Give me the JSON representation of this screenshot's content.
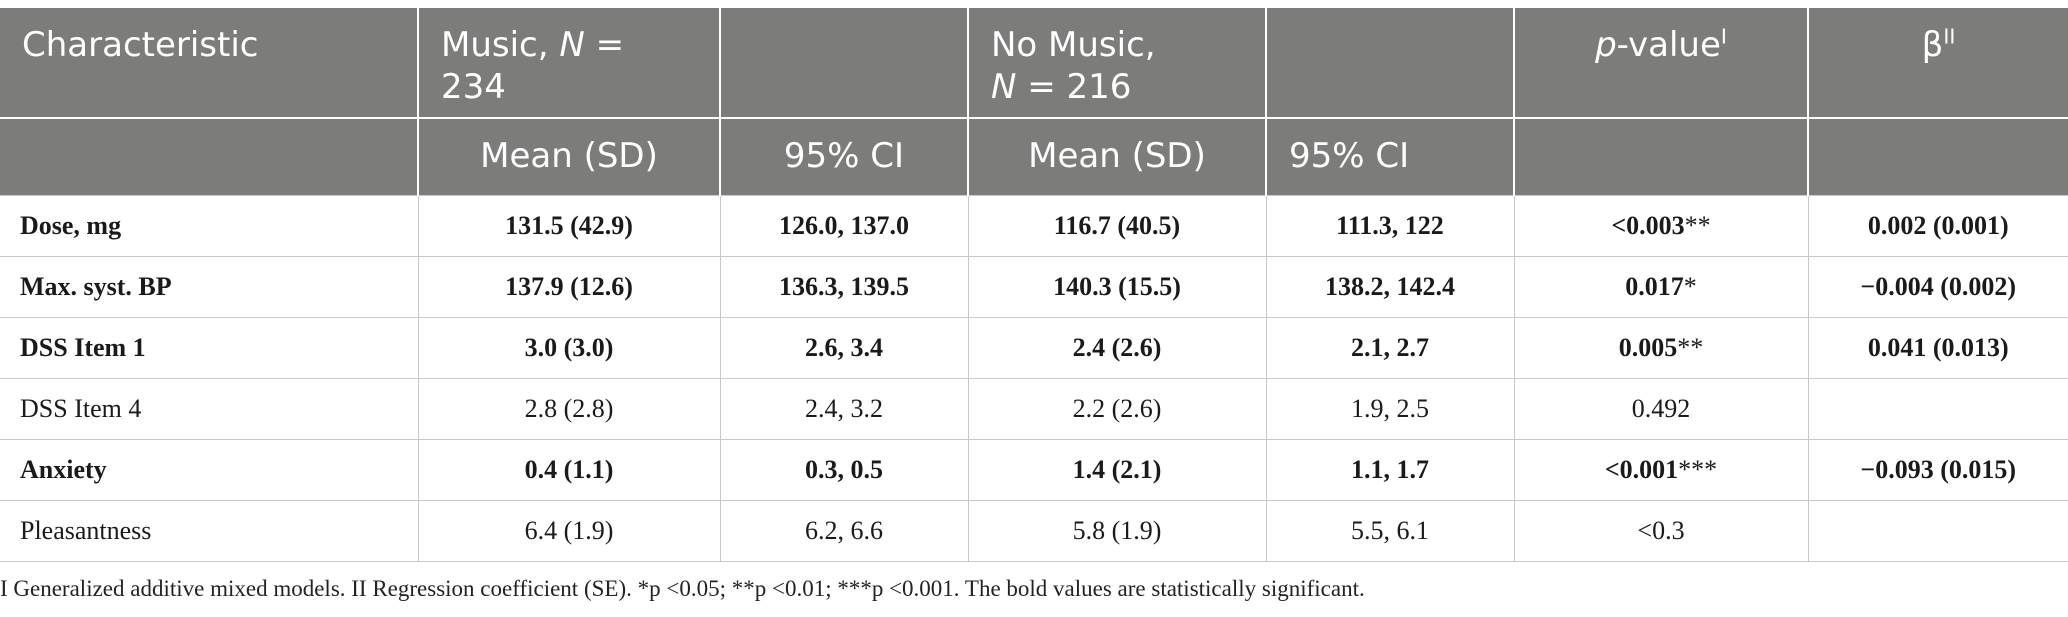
{
  "header": {
    "characteristic": "Characteristic",
    "music_prefix": "Music, ",
    "music_n_symbol": "N",
    "music_n_value": " = 234",
    "nomusic_line1": "No Music,",
    "nomusic_n_symbol": "N",
    "nomusic_n_value": " = 216",
    "p_italic": "p",
    "p_rest": "-value",
    "p_sup": "I",
    "beta": "β",
    "beta_sup": "II",
    "mean_sd_music": "Mean (SD)",
    "ci_music": "95% CI",
    "mean_sd_nomusic": "Mean (SD)",
    "ci_nomusic": "95% CI"
  },
  "rows": [
    {
      "label": "Dose, mg",
      "bold": true,
      "music_mean": "131.5 (42.9)",
      "music_ci": "126.0, 137.0",
      "nomusic_mean": "116.7 (40.5)",
      "nomusic_ci": "111.3, 122",
      "p": "<0.003",
      "p_stars": "**",
      "beta": "0.002 (0.001)"
    },
    {
      "label": "Max. syst. BP",
      "bold": true,
      "music_mean": "137.9 (12.6)",
      "music_ci": "136.3, 139.5",
      "nomusic_mean": "140.3 (15.5)",
      "nomusic_ci": "138.2, 142.4",
      "p": "0.017",
      "p_stars": "*",
      "beta": "−0.004 (0.002)"
    },
    {
      "label": "DSS Item 1",
      "bold": true,
      "music_mean": "3.0 (3.0)",
      "music_ci": "2.6, 3.4",
      "nomusic_mean": "2.4 (2.6)",
      "nomusic_ci": "2.1, 2.7",
      "p": "0.005",
      "p_stars": "**",
      "beta": "0.041 (0.013)"
    },
    {
      "label": "DSS Item 4",
      "bold": false,
      "music_mean": "2.8 (2.8)",
      "music_ci": "2.4, 3.2",
      "nomusic_mean": "2.2 (2.6)",
      "nomusic_ci": "1.9, 2.5",
      "p": "0.492",
      "p_stars": "",
      "beta": ""
    },
    {
      "label": "Anxiety",
      "bold": true,
      "music_mean": "0.4 (1.1)",
      "music_ci": "0.3, 0.5",
      "nomusic_mean": "1.4 (2.1)",
      "nomusic_ci": "1.1, 1.7",
      "p": "<0.001",
      "p_stars": "***",
      "beta": "−0.093 (0.015)"
    },
    {
      "label": "Pleasantness",
      "bold": false,
      "music_mean": "6.4 (1.9)",
      "music_ci": "6.2, 6.6",
      "nomusic_mean": "5.8 (1.9)",
      "nomusic_ci": "5.5, 6.1",
      "p": "<0.3",
      "p_stars": "",
      "beta": ""
    }
  ],
  "footnote": "I Generalized additive mixed models. II Regression coefficient (SE). *p <0.05; **p <0.01; ***p <0.001. The bold values are statistically significant."
}
